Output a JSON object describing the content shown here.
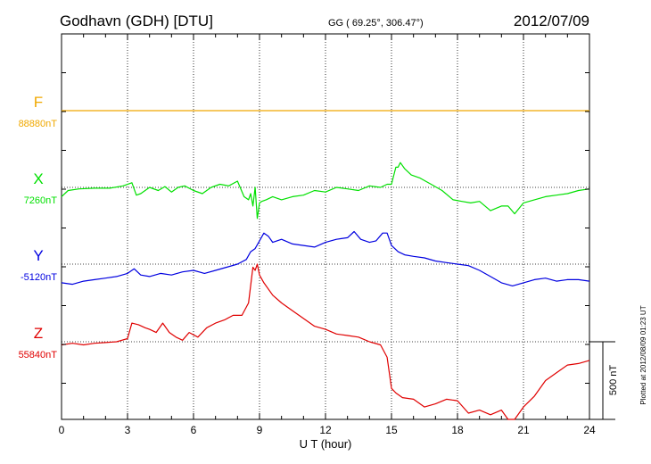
{
  "chart_data": {
    "type": "line",
    "title": "Godhavn (GDH)  [DTU]",
    "subtitle": "GG ( 69.25°, 306.47°)",
    "date": "2012/07/09",
    "xlabel": "U T (hour)",
    "xlim": [
      0,
      24
    ],
    "xticks": [
      "0",
      "3",
      "6",
      "9",
      "12",
      "15",
      "18",
      "21",
      "24"
    ],
    "grid": true,
    "scale_bar_label": "500 nT",
    "side_note": "Plotted at 2012/08/09 01:23 UT",
    "series": [
      {
        "name": "F",
        "baseline_label": "88880nT",
        "color": "#f0a800",
        "x": [
          0,
          24
        ],
        "y": [
          0,
          0
        ]
      },
      {
        "name": "X",
        "baseline_label": "7260nT",
        "color": "#00e000",
        "x": [
          0,
          0.3,
          0.8,
          1.5,
          2.2,
          2.8,
          3.2,
          3.4,
          3.6,
          4.0,
          4.4,
          4.7,
          5.0,
          5.3,
          5.6,
          6.0,
          6.4,
          6.8,
          7.2,
          7.6,
          8.0,
          8.3,
          8.5,
          8.6,
          8.7,
          8.8,
          8.9,
          9.0,
          9.1,
          9.3,
          9.6,
          10.0,
          10.5,
          11.0,
          11.5,
          12.0,
          12.5,
          13.0,
          13.5,
          14.0,
          14.5,
          14.8,
          15.0,
          15.2,
          15.3,
          15.4,
          15.6,
          15.9,
          16.3,
          16.8,
          17.3,
          17.8,
          18.2,
          18.6,
          19.0,
          19.5,
          20.0,
          20.3,
          20.6,
          21.0,
          21.5,
          22.0,
          22.5,
          23.0,
          23.5,
          24.0
        ],
        "y": [
          -60,
          -20,
          -10,
          -5,
          -5,
          10,
          30,
          -50,
          -40,
          0,
          -20,
          5,
          -30,
          0,
          10,
          -20,
          -40,
          0,
          20,
          10,
          40,
          -60,
          -80,
          -40,
          -120,
          0,
          -200,
          -100,
          -90,
          -80,
          -60,
          -80,
          -60,
          -50,
          -20,
          -30,
          0,
          -10,
          -20,
          10,
          0,
          20,
          20,
          130,
          130,
          160,
          120,
          80,
          60,
          20,
          -20,
          -80,
          -90,
          -100,
          -90,
          -150,
          -120,
          -120,
          -170,
          -100,
          -80,
          -60,
          -50,
          -40,
          -20,
          -10
        ]
      },
      {
        "name": "Y",
        "baseline_label": "-5120nT",
        "color": "#0000e0",
        "x": [
          0,
          0.5,
          1.0,
          1.5,
          2.0,
          2.5,
          3.0,
          3.3,
          3.6,
          4.0,
          4.5,
          5.0,
          5.5,
          6.0,
          6.5,
          7.0,
          7.5,
          8.0,
          8.4,
          8.6,
          8.8,
          9.0,
          9.2,
          9.4,
          9.6,
          10.0,
          10.5,
          11.0,
          11.5,
          12.0,
          12.5,
          13.0,
          13.3,
          13.6,
          14.0,
          14.3,
          14.6,
          14.8,
          15.0,
          15.3,
          15.6,
          16.0,
          16.5,
          17.0,
          17.5,
          18.0,
          18.5,
          19.0,
          19.5,
          20.0,
          20.5,
          21.0,
          21.5,
          22.0,
          22.5,
          23.0,
          23.5,
          24.0
        ],
        "y": [
          -120,
          -130,
          -110,
          -100,
          -90,
          -80,
          -60,
          -30,
          -70,
          -80,
          -60,
          -70,
          -50,
          -40,
          -60,
          -40,
          -20,
          0,
          30,
          80,
          100,
          150,
          200,
          180,
          140,
          160,
          130,
          120,
          110,
          140,
          160,
          170,
          210,
          160,
          140,
          150,
          200,
          200,
          120,
          80,
          60,
          50,
          40,
          20,
          10,
          0,
          -10,
          -40,
          -80,
          -120,
          -140,
          -120,
          -100,
          -90,
          -110,
          -100,
          -100,
          -110
        ]
      },
      {
        "name": "Z",
        "baseline_label": "55840nT",
        "color": "#e00000",
        "x": [
          0,
          0.5,
          1.0,
          1.5,
          2.0,
          2.5,
          3.0,
          3.2,
          3.5,
          3.8,
          4.0,
          4.3,
          4.6,
          4.9,
          5.2,
          5.5,
          5.8,
          6.2,
          6.6,
          7.0,
          7.4,
          7.8,
          8.2,
          8.5,
          8.7,
          8.8,
          8.9,
          9.0,
          9.2,
          9.6,
          10.0,
          10.5,
          11.0,
          11.5,
          12.0,
          12.5,
          13.0,
          13.5,
          14.0,
          14.5,
          14.8,
          15.0,
          15.2,
          15.5,
          16.0,
          16.5,
          17.0,
          17.5,
          18.0,
          18.5,
          19.0,
          19.5,
          20.0,
          20.3,
          20.6,
          21.0,
          21.5,
          22.0,
          22.5,
          23.0,
          23.5,
          24.0
        ],
        "y": [
          -20,
          -10,
          -20,
          -10,
          -5,
          0,
          20,
          120,
          110,
          90,
          80,
          60,
          120,
          60,
          30,
          10,
          60,
          30,
          90,
          120,
          140,
          170,
          170,
          250,
          480,
          460,
          500,
          430,
          380,
          300,
          250,
          200,
          150,
          100,
          80,
          50,
          40,
          30,
          0,
          -20,
          -100,
          -300,
          -330,
          -360,
          -370,
          -420,
          -400,
          -370,
          -380,
          -460,
          -440,
          -470,
          -440,
          -510,
          -500,
          -420,
          -350,
          -250,
          -200,
          -150,
          -140,
          -120
        ]
      }
    ]
  }
}
